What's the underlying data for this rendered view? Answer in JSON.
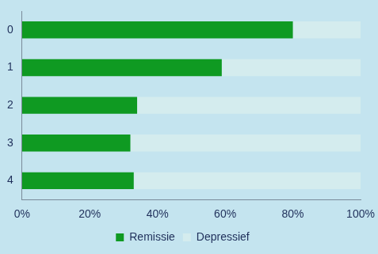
{
  "chart_data": {
    "type": "bar",
    "orientation": "horizontal",
    "stacked": true,
    "categories": [
      "0",
      "1",
      "2",
      "3",
      "4"
    ],
    "series": [
      {
        "name": "Remissie",
        "color": "#0f9a22",
        "values": [
          80,
          59,
          34,
          32,
          33
        ]
      },
      {
        "name": "Depressief",
        "color": "#d4ecee",
        "values": [
          20,
          41,
          66,
          68,
          67
        ]
      }
    ],
    "xlim": [
      0,
      100
    ],
    "xticks": [
      {
        "value": 0,
        "label": "0%"
      },
      {
        "value": 20,
        "label": "20%"
      },
      {
        "value": 40,
        "label": "40%"
      },
      {
        "value": 60,
        "label": "60%"
      },
      {
        "value": 80,
        "label": "80%"
      },
      {
        "value": 100,
        "label": "100%"
      }
    ],
    "grid": false,
    "legend": "bottom"
  }
}
